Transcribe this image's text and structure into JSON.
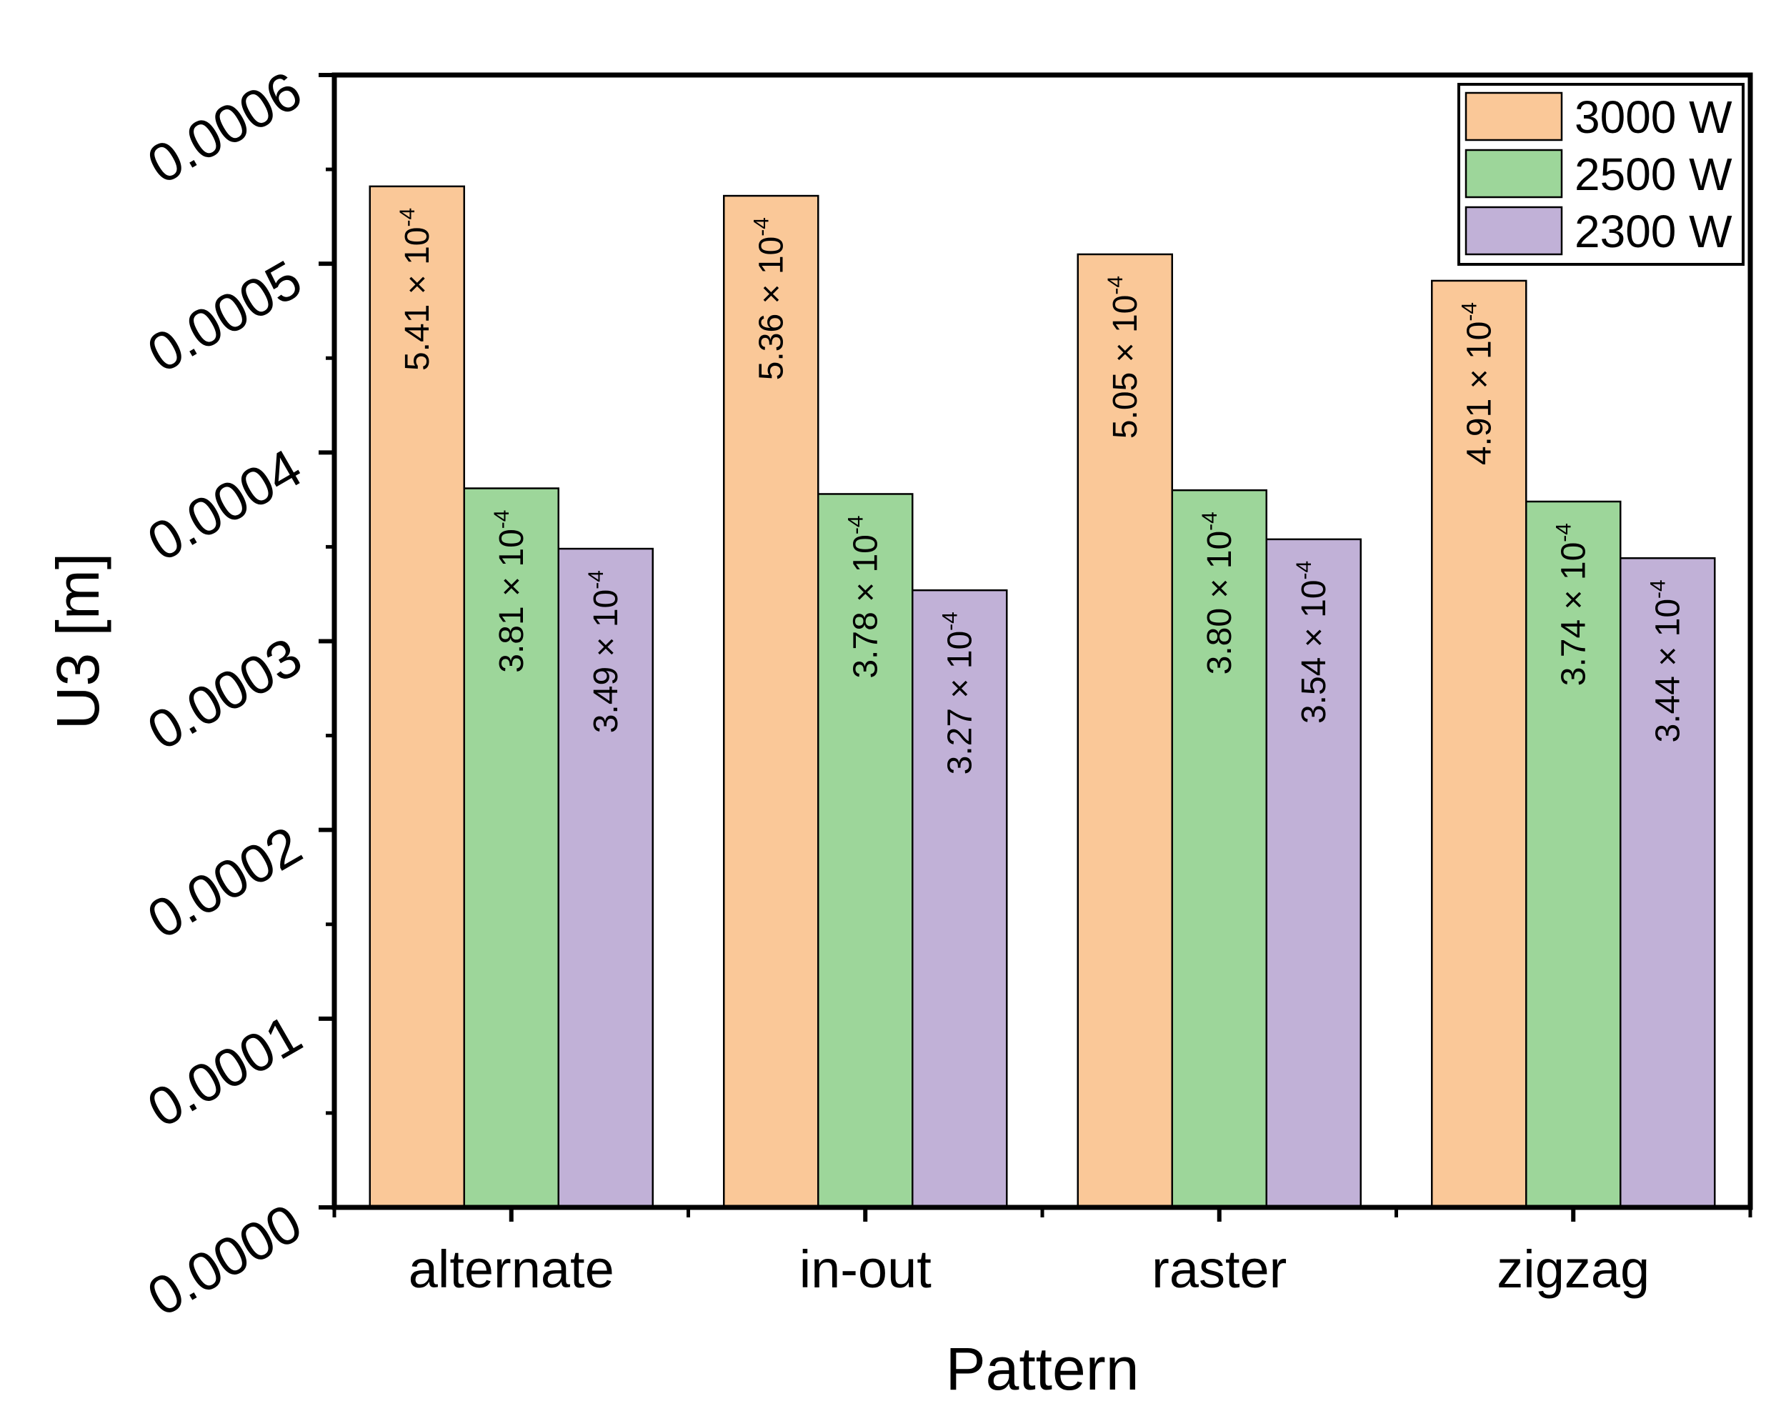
{
  "chart_data": {
    "type": "bar",
    "title": "",
    "xlabel": "Pattern",
    "ylabel": "U3 [m]",
    "ylim": [
      0,
      0.0006
    ],
    "y_ticks": [
      "0.0000",
      "0.0001",
      "0.0002",
      "0.0003",
      "0.0004",
      "0.0005",
      "0.0006"
    ],
    "y_tick_values": [
      0,
      0.0001,
      0.0002,
      0.0003,
      0.0004,
      0.0005,
      0.0006
    ],
    "categories": [
      "alternate",
      "in-out",
      "raster",
      "zigzag"
    ],
    "legend_position": "top-right",
    "series": [
      {
        "name": "3000 W",
        "color": "#FAC898",
        "values": [
          0.000541,
          0.000536,
          0.000505,
          0.000491
        ],
        "labels": [
          "5.41 × 10",
          "5.36 × 10",
          "5.05 × 10",
          "4.91 × 10"
        ]
      },
      {
        "name": "2500 W",
        "color": "#9DD69A",
        "values": [
          0.000381,
          0.000378,
          0.00038,
          0.000374
        ],
        "labels": [
          "3.81 × 10",
          "3.78 × 10",
          "3.80 × 10",
          "3.74 × 10"
        ]
      },
      {
        "name": "2300 W",
        "color": "#C1B1D7",
        "values": [
          0.000349,
          0.000327,
          0.000354,
          0.000344
        ],
        "labels": [
          "3.49 × 10",
          "3.27 × 10",
          "3.54 × 10",
          "3.44 × 10"
        ]
      }
    ],
    "label_exponent": "-4"
  }
}
